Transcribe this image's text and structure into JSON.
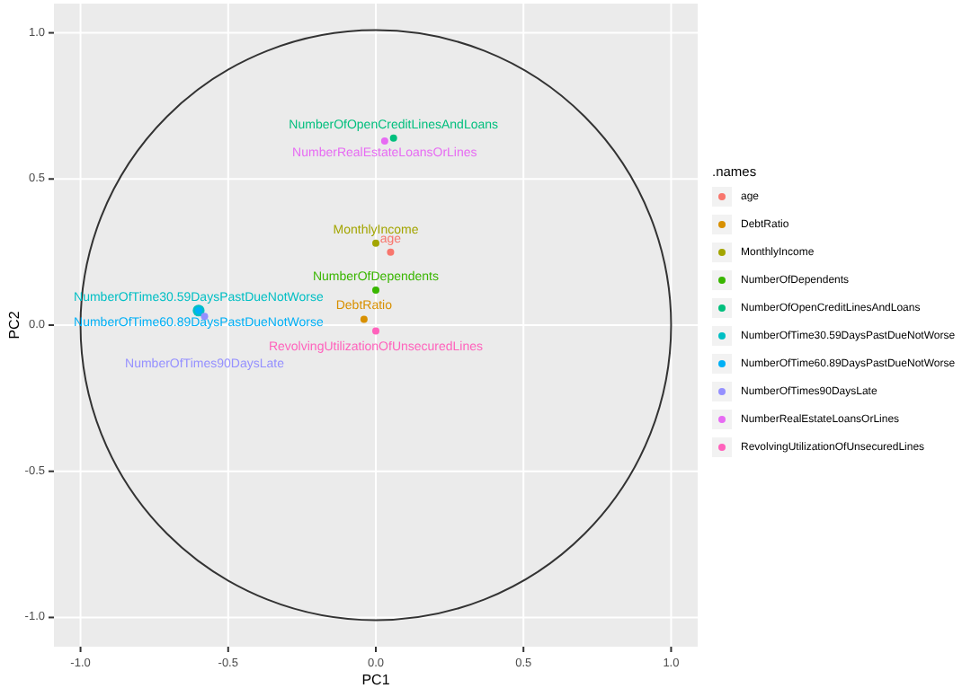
{
  "chart_data": {
    "type": "scatter",
    "xlabel": "PC1",
    "ylabel": "PC2",
    "legend_title": ".names",
    "legend": "right",
    "grid": true,
    "xlim": [
      -1.09,
      1.09
    ],
    "ylim": [
      -1.1,
      1.1
    ],
    "xticks": [
      {
        "value": -1,
        "label": "-1.0"
      },
      {
        "value": -0.5,
        "label": "-0.5"
      },
      {
        "value": 0,
        "label": "0.0"
      },
      0.5,
      {
        "value": 1,
        "label": "1.0"
      }
    ],
    "yticks": [
      {
        "value": -1,
        "label": "-1.0"
      },
      {
        "value": -0.5,
        "label": "-0.5"
      },
      {
        "value": 0,
        "label": "0.0"
      },
      0.5,
      {
        "value": 1,
        "label": "1.0"
      }
    ],
    "series": [
      {
        "name": "age",
        "color": "#f8766d",
        "x": [
          0.05
        ],
        "values": [
          0.25
        ]
      },
      {
        "name": "DebtRatio",
        "color": "#d89000",
        "x": [
          -0.04
        ],
        "values": [
          0.02
        ]
      },
      {
        "name": "MonthlyIncome",
        "color": "#a3a500",
        "x": [
          0.0
        ],
        "values": [
          0.28
        ]
      },
      {
        "name": "NumberOfDependents",
        "color": "#39b600",
        "x": [
          0.0
        ],
        "values": [
          0.12
        ]
      },
      {
        "name": "NumberOfOpenCreditLinesAndLoans",
        "color": "#00bf7d",
        "x": [
          0.06
        ],
        "values": [
          0.64
        ]
      },
      {
        "name": "NumberOfTime30.59DaysPastDueNotWorse",
        "color": "#00bfc4",
        "x": [
          -0.6
        ],
        "values": [
          0.05
        ]
      },
      {
        "name": "NumberOfTime60.89DaysPastDueNotWorse",
        "color": "#00b0f6",
        "x": [
          -0.6
        ],
        "values": [
          0.05
        ]
      },
      {
        "name": "NumberOfTimes90DaysLate",
        "color": "#9590ff",
        "x": [
          -0.58
        ],
        "values": [
          0.03
        ]
      },
      {
        "name": "NumberRealEstateLoansOrLines",
        "color": "#e76bf3",
        "x": [
          0.03
        ],
        "values": [
          0.63
        ]
      },
      {
        "name": "RevolvingUtilizationOfUnsecuredLines",
        "color": "#ff62bc",
        "x": [
          0.0
        ],
        "values": [
          -0.02
        ]
      }
    ]
  }
}
